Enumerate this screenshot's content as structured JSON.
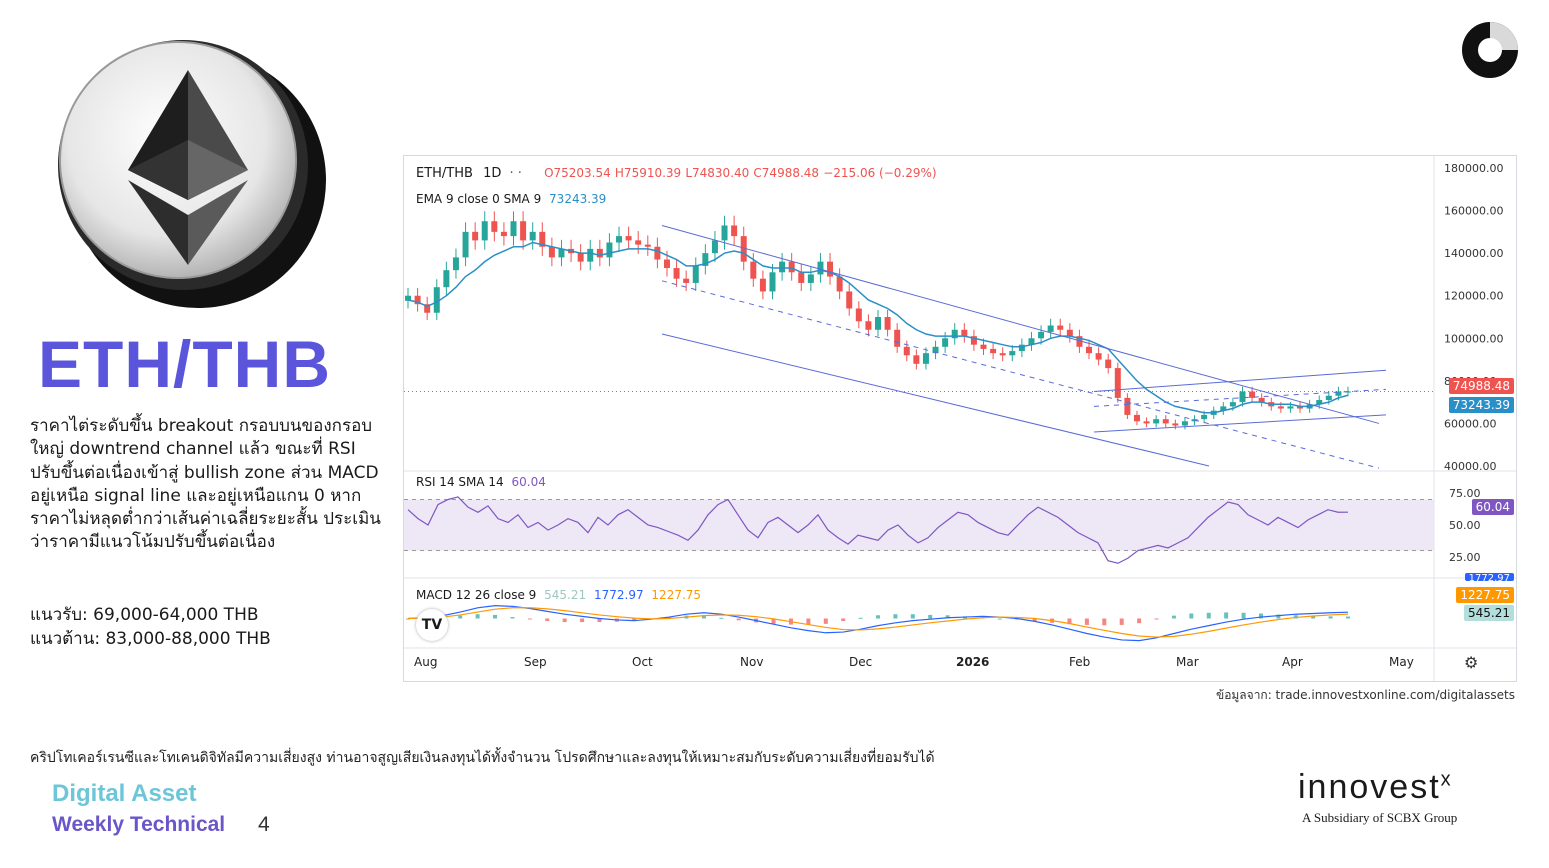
{
  "page": {
    "title": "ETH/THB",
    "description": "ราคาไต่ระดับขึ้น breakout กรอบบนของกรอบใหญ่ downtrend channel แล้ว ขณะที่ RSI ปรับขึ้นต่อเนื่องเข้าสู่ bullish zone ส่วน MACD อยู่เหนือ signal line และอยู่เหนือแกน 0 หากราคาไม่หลุดต่ำกว่าเส้นค่าเฉลี่ยระยะสั้น ประเมินว่าราคามีแนวโน้มปรับขึ้นต่อเนื่อง",
    "support": "แนวรับ: 69,000-64,000 THB",
    "resistance": "แนวต้าน: 83,000-88,000 THB",
    "source": "ข้อมูลจาก: trade.innovestxonline.com/digitalassets",
    "disclaimer": "คริปโทเคอร์เรนซีและโทเคนดิจิทัลมีความเสี่ยงสูง ท่านอาจสูญเสียเงินลงทุนได้ทั้งจำนวน โปรดศึกษาและลงทุนให้เหมาะสมกับระดับความเสี่ยงที่ยอมรับได้",
    "brand_line1": "Digital Asset",
    "brand_line2": "Weekly Technical",
    "page_number": "4",
    "logo_word": "innovest",
    "logo_x": "x",
    "logo_sub": "A Subsidiary of SCBX Group"
  },
  "colors": {
    "accent": "#5b55dc",
    "up": "#26a69a",
    "down": "#ef5350",
    "ema": "#2a8fc7",
    "rsi": "#7e57c2",
    "macd": "#2962ff",
    "signal": "#ff9800"
  },
  "chart_data": [
    {
      "type": "candlestick",
      "symbol": "ETH/THB",
      "interval": "1D",
      "ohlc_label": {
        "o": "O75203.54",
        "h": "H75910.39",
        "l": "L74830.40",
        "c": "C74988.48",
        "chg": "−215.06 (−0.29%)"
      },
      "indicator_label": "EMA 9 close 0 SMA 9",
      "indicator_value": "73243.39",
      "last_price_tag": "74988.48",
      "ema_tag": "73243.39",
      "x_labels": [
        "Aug",
        "Sep",
        "Oct",
        "Nov",
        "Dec",
        "2026",
        "Feb",
        "Mar",
        "Apr",
        "May"
      ],
      "y_ticks": [
        "180000.00",
        "160000.00",
        "140000.00",
        "120000.00",
        "100000.00",
        "80000.00",
        "60000.00",
        "40000.00"
      ],
      "ylim": [
        40000,
        180000
      ],
      "closes": [
        120000,
        116000,
        112000,
        124000,
        132000,
        138000,
        150000,
        146000,
        155000,
        150000,
        148000,
        155000,
        146000,
        150000,
        143000,
        138000,
        142000,
        140000,
        136000,
        142000,
        138000,
        145000,
        148000,
        146000,
        144000,
        143000,
        137000,
        133000,
        128000,
        126000,
        134000,
        140000,
        146000,
        153000,
        148000,
        136000,
        128000,
        122000,
        131000,
        136000,
        131000,
        126000,
        130000,
        136000,
        129000,
        122000,
        114000,
        108000,
        104000,
        110000,
        104000,
        96000,
        92000,
        88000,
        93000,
        96000,
        100000,
        104000,
        101000,
        97000,
        95000,
        93000,
        92000,
        94000,
        97000,
        100000,
        103000,
        106000,
        104000,
        101000,
        96000,
        93000,
        90000,
        86000,
        72000,
        64000,
        61000,
        60000,
        62000,
        60000,
        59000,
        61000,
        62000,
        64000,
        66000,
        68000,
        70000,
        75000,
        72000,
        70000,
        68000,
        67000,
        68000,
        67000,
        69000,
        71000,
        73000,
        75000,
        75000
      ],
      "ema9": [
        118000,
        117000,
        115000,
        117000,
        120000,
        124000,
        129000,
        132000,
        136000,
        139000,
        141000,
        143000,
        143000,
        145000,
        144000,
        143000,
        142000,
        141000,
        140000,
        140000,
        139000,
        140000,
        141000,
        142000,
        142000,
        142000,
        141000,
        139000,
        137000,
        134000,
        134000,
        135000,
        137000,
        140000,
        141000,
        140000,
        137000,
        134000,
        133000,
        133000,
        133000,
        131000,
        131000,
        132000,
        131000,
        129000,
        126000,
        122000,
        118000,
        116000,
        114000,
        111000,
        107000,
        104000,
        102000,
        101000,
        101000,
        101000,
        101000,
        100000,
        99000,
        98000,
        97000,
        96000,
        96000,
        97000,
        98000,
        100000,
        101000,
        101000,
        100000,
        99000,
        97000,
        95000,
        90000,
        85000,
        80000,
        76000,
        73000,
        70000,
        68000,
        67000,
        66000,
        65000,
        65000,
        66000,
        67000,
        69000,
        70000,
        70000,
        69000,
        69000,
        69000,
        68000,
        68000,
        69000,
        70000,
        72000,
        73243
      ]
    },
    {
      "type": "line",
      "name": "RSI 14 SMA 14",
      "value_label": "60.04",
      "tag": "60.04",
      "y_ticks": [
        "75.00",
        "50.00",
        "25.00"
      ],
      "ylim": [
        10,
        90
      ],
      "values": [
        62,
        55,
        50,
        66,
        70,
        72,
        64,
        60,
        65,
        55,
        52,
        58,
        48,
        52,
        46,
        50,
        55,
        52,
        44,
        56,
        50,
        58,
        62,
        56,
        50,
        48,
        45,
        42,
        38,
        46,
        58,
        66,
        70,
        58,
        46,
        40,
        52,
        56,
        50,
        44,
        50,
        58,
        46,
        40,
        35,
        42,
        40,
        38,
        46,
        50,
        42,
        36,
        40,
        48,
        54,
        60,
        58,
        52,
        48,
        44,
        42,
        50,
        58,
        64,
        60,
        56,
        50,
        44,
        40,
        36,
        22,
        20,
        24,
        30,
        32,
        34,
        32,
        36,
        40,
        48,
        56,
        62,
        68,
        66,
        58,
        54,
        50,
        56,
        52,
        48,
        54,
        58,
        62,
        60,
        60.04
      ],
      "band": [
        30,
        70
      ]
    },
    {
      "type": "line",
      "name": "MACD 12 26 close 9",
      "values_label": [
        "545.21",
        "1772.97",
        "1227.75"
      ],
      "tags": [
        "1772.97",
        "1227.75",
        "545.21"
      ],
      "macd": [
        0,
        200,
        800,
        1800,
        3000,
        3600,
        3400,
        2800,
        2000,
        1200,
        600,
        0,
        -400,
        -600,
        -200,
        400,
        1200,
        1600,
        1200,
        400,
        -600,
        -1600,
        -2600,
        -3400,
        -4000,
        -3800,
        -3000,
        -2000,
        -1200,
        -600,
        -200,
        200,
        400,
        600,
        400,
        0,
        -800,
        -1800,
        -3000,
        -4200,
        -5200,
        -6000,
        -6200,
        -5400,
        -4200,
        -3000,
        -2000,
        -1000,
        -200,
        400,
        800,
        1200,
        1400,
        1600,
        1772.97
      ],
      "signal": [
        0,
        100,
        400,
        1000,
        1800,
        2600,
        3000,
        3000,
        2700,
        2200,
        1600,
        1000,
        500,
        100,
        -100,
        0,
        400,
        800,
        1000,
        900,
        500,
        -100,
        -900,
        -1700,
        -2500,
        -3100,
        -3200,
        -2900,
        -2400,
        -1800,
        -1200,
        -700,
        -200,
        200,
        400,
        300,
        0,
        -600,
        -1400,
        -2400,
        -3300,
        -4200,
        -4900,
        -5200,
        -5000,
        -4400,
        -3600,
        -2700,
        -1800,
        -1000,
        -300,
        300,
        700,
        1000,
        1227.75
      ]
    }
  ]
}
